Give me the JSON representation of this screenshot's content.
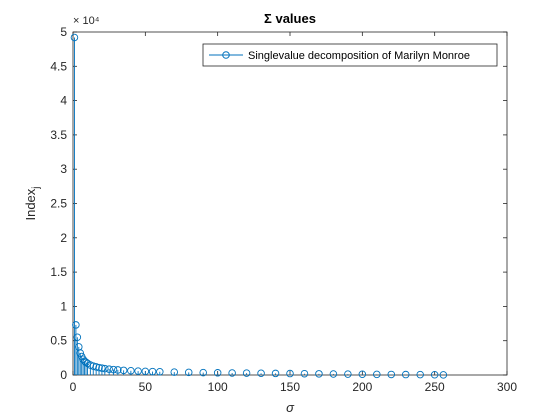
{
  "chart_data": {
    "type": "stem",
    "title": "Σ values",
    "xlabel": "σ",
    "ylabel": "Index",
    "ylabel_subscript": "j",
    "y_exponent_label": "× 10⁴",
    "xlim": [
      0,
      300
    ],
    "ylim": [
      0,
      50000
    ],
    "x_ticks": [
      0,
      50,
      100,
      150,
      200,
      250,
      300
    ],
    "y_ticks": [
      0,
      5000,
      10000,
      15000,
      20000,
      25000,
      30000,
      35000,
      40000,
      45000,
      50000
    ],
    "y_tick_labels": [
      "0",
      "0.5",
      "1",
      "1.5",
      "2",
      "2.5",
      "3",
      "3.5",
      "4",
      "4.5",
      "5"
    ],
    "grid": false,
    "legend_position": "top-right",
    "color": "#0072BD",
    "series": [
      {
        "name": "Singlevalue decomposition of Marilyn Monroe",
        "x": [
          1,
          2,
          3,
          4,
          5,
          6,
          7,
          8,
          9,
          10,
          12,
          14,
          16,
          18,
          20,
          22,
          25,
          28,
          31,
          35,
          40,
          45,
          50,
          55,
          60,
          70,
          80,
          90,
          100,
          110,
          120,
          130,
          140,
          150,
          160,
          170,
          180,
          190,
          200,
          210,
          220,
          230,
          240,
          250,
          256
        ],
        "values": [
          49200,
          7300,
          5500,
          4100,
          3200,
          2700,
          2300,
          2000,
          1850,
          1700,
          1450,
          1300,
          1180,
          1080,
          1000,
          930,
          850,
          790,
          740,
          680,
          620,
          570,
          530,
          500,
          470,
          420,
          380,
          350,
          320,
          290,
          270,
          250,
          230,
          210,
          190,
          170,
          150,
          130,
          110,
          95,
          80,
          65,
          50,
          35,
          20
        ]
      }
    ]
  }
}
